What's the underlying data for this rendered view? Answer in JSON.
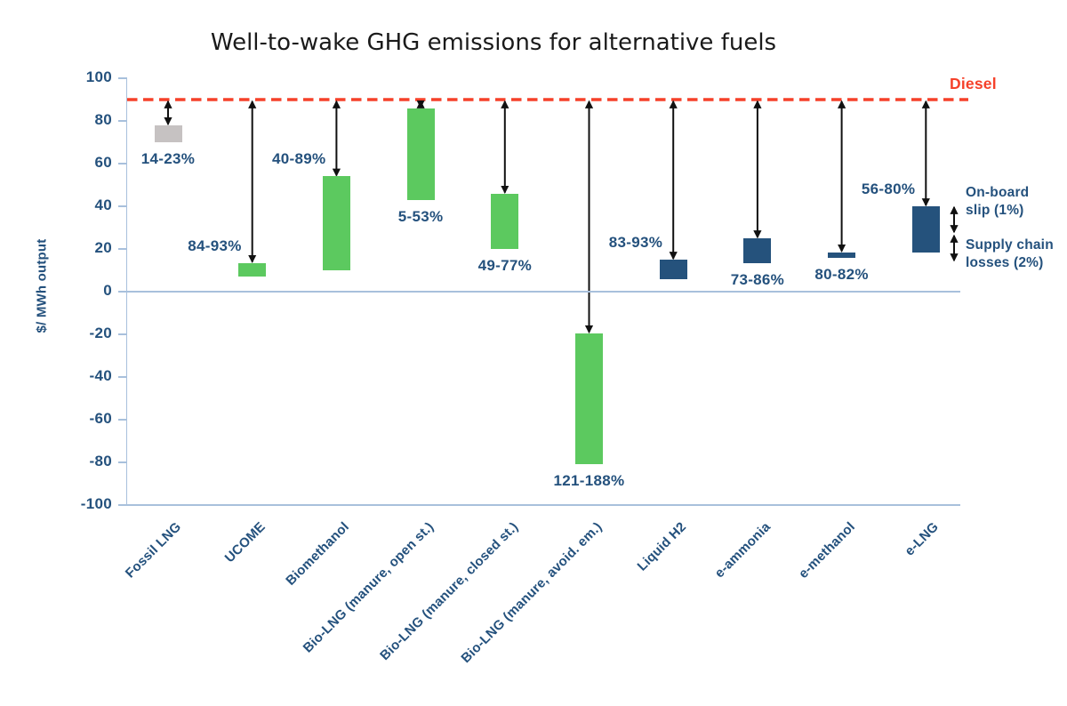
{
  "title": "Well-to-wake GHG emissions for alternative fuels",
  "y_axis_label": "$/ MWh output",
  "diesel_label": "Diesel",
  "annotations": [
    {
      "name": "on-board-slip",
      "lines": [
        "On-board",
        "slip (1%)"
      ]
    },
    {
      "name": "supply-chain-losses",
      "lines": [
        "Supply chain",
        "losses (2%)"
      ]
    }
  ],
  "palette": {
    "green": "#5cc95f",
    "navy": "#25527c",
    "gray": "#c6c2c2",
    "red": "#f5412a",
    "axis": "#a8c0dc",
    "text": "#24517d",
    "arrow": "#111111",
    "title": "#1a1a1a"
  },
  "chart_data": {
    "type": "bar",
    "title": "Well-to-wake GHG emissions for alternative fuels",
    "xlabel": "",
    "ylabel": "$/ MWh output",
    "ylim": [
      -100,
      100
    ],
    "ytick_step": 20,
    "grid": false,
    "reference_line": {
      "label": "Diesel",
      "value": 90,
      "style": "dashed-red"
    },
    "bars": [
      {
        "category": "Fossil LNG",
        "low": 70,
        "high": 78,
        "reduction_vs_diesel": "14-23%",
        "color": "gray",
        "label_pos": "below"
      },
      {
        "category": "UCOME",
        "low": 7,
        "high": 13.5,
        "reduction_vs_diesel": "84-93%",
        "color": "green",
        "label_pos": "above-left"
      },
      {
        "category": "Biomethanol",
        "low": 10,
        "high": 54,
        "reduction_vs_diesel": "40-89%",
        "color": "green",
        "label_pos": "above-left"
      },
      {
        "category": "Bio-LNG (manure, open st.)",
        "low": 43,
        "high": 86,
        "reduction_vs_diesel": "5-53%",
        "color": "green",
        "label_pos": "below"
      },
      {
        "category": "Bio-LNG (manure, closed st.)",
        "low": 20,
        "high": 46,
        "reduction_vs_diesel": "49-77%",
        "color": "green",
        "label_pos": "below"
      },
      {
        "category": "Bio-LNG (manure, avoid. em.)",
        "low": -81,
        "high": -19.5,
        "reduction_vs_diesel": "121-188%",
        "color": "green",
        "label_pos": "below"
      },
      {
        "category": "Liquid H2",
        "low": 6,
        "high": 15,
        "reduction_vs_diesel": "83-93%",
        "color": "navy",
        "label_pos": "above-left"
      },
      {
        "category": "e-ammonia",
        "low": 13.5,
        "high": 25,
        "reduction_vs_diesel": "73-86%",
        "color": "navy",
        "label_pos": "below"
      },
      {
        "category": "e-methanol",
        "low": 16,
        "high": 18.5,
        "reduction_vs_diesel": "80-82%",
        "color": "navy",
        "label_pos": "below"
      },
      {
        "category": "e-LNG",
        "low": 18.5,
        "high": 40,
        "reduction_vs_diesel": "56-80%",
        "color": "navy",
        "label_pos": "above-left"
      }
    ]
  }
}
